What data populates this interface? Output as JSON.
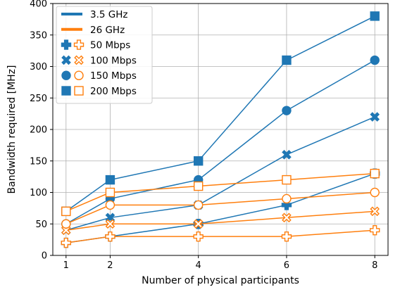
{
  "chart_data": {
    "type": "line",
    "xlabel": "Number of physical participants",
    "ylabel": "Bandwidth required [MHz]",
    "x_ticks": [
      1,
      2,
      4,
      6,
      8
    ],
    "y_ticks": [
      0,
      50,
      100,
      150,
      200,
      250,
      300,
      350,
      400
    ],
    "xlim": [
      0.7,
      8.3
    ],
    "ylim": [
      0,
      400
    ],
    "grid": true,
    "legend_position": "top-left",
    "colors": {
      "3.5 GHz": "#1f77b4",
      "26 GHz": "#ff7f0e"
    },
    "legend": [
      {
        "label": "3.5 GHz",
        "kind": "line",
        "color": "#1f77b4"
      },
      {
        "label": "26 GHz",
        "kind": "line",
        "color": "#ff7f0e"
      },
      {
        "label": "50 Mbps",
        "kind": "markers",
        "marker": "plus"
      },
      {
        "label": "100 Mbps",
        "kind": "markers",
        "marker": "x"
      },
      {
        "label": "150 Mbps",
        "kind": "markers",
        "marker": "circle"
      },
      {
        "label": "200 Mbps",
        "kind": "markers",
        "marker": "square"
      }
    ],
    "x": [
      1,
      2,
      4,
      6,
      8
    ],
    "series": [
      {
        "band": "3.5 GHz",
        "rate": "50 Mbps",
        "marker": "plus",
        "filled": true,
        "color": "#1f77b4",
        "values": [
          20,
          30,
          50,
          80,
          130
        ]
      },
      {
        "band": "3.5 GHz",
        "rate": "100 Mbps",
        "marker": "x",
        "filled": true,
        "color": "#1f77b4",
        "values": [
          40,
          60,
          80,
          160,
          220
        ]
      },
      {
        "band": "3.5 GHz",
        "rate": "150 Mbps",
        "marker": "circle",
        "filled": true,
        "color": "#1f77b4",
        "values": [
          50,
          90,
          120,
          230,
          310
        ]
      },
      {
        "band": "3.5 GHz",
        "rate": "200 Mbps",
        "marker": "square",
        "filled": true,
        "color": "#1f77b4",
        "values": [
          70,
          120,
          150,
          310,
          380
        ]
      },
      {
        "band": "26 GHz",
        "rate": "50 Mbps",
        "marker": "plus",
        "filled": false,
        "color": "#ff7f0e",
        "values": [
          20,
          30,
          30,
          30,
          40
        ]
      },
      {
        "band": "26 GHz",
        "rate": "100 Mbps",
        "marker": "x",
        "filled": false,
        "color": "#ff7f0e",
        "values": [
          40,
          50,
          50,
          60,
          70
        ]
      },
      {
        "band": "26 GHz",
        "rate": "150 Mbps",
        "marker": "circle",
        "filled": false,
        "color": "#ff7f0e",
        "values": [
          50,
          80,
          80,
          90,
          100
        ]
      },
      {
        "band": "26 GHz",
        "rate": "200 Mbps",
        "marker": "square",
        "filled": false,
        "color": "#ff7f0e",
        "values": [
          70,
          100,
          110,
          120,
          130
        ]
      }
    ]
  }
}
